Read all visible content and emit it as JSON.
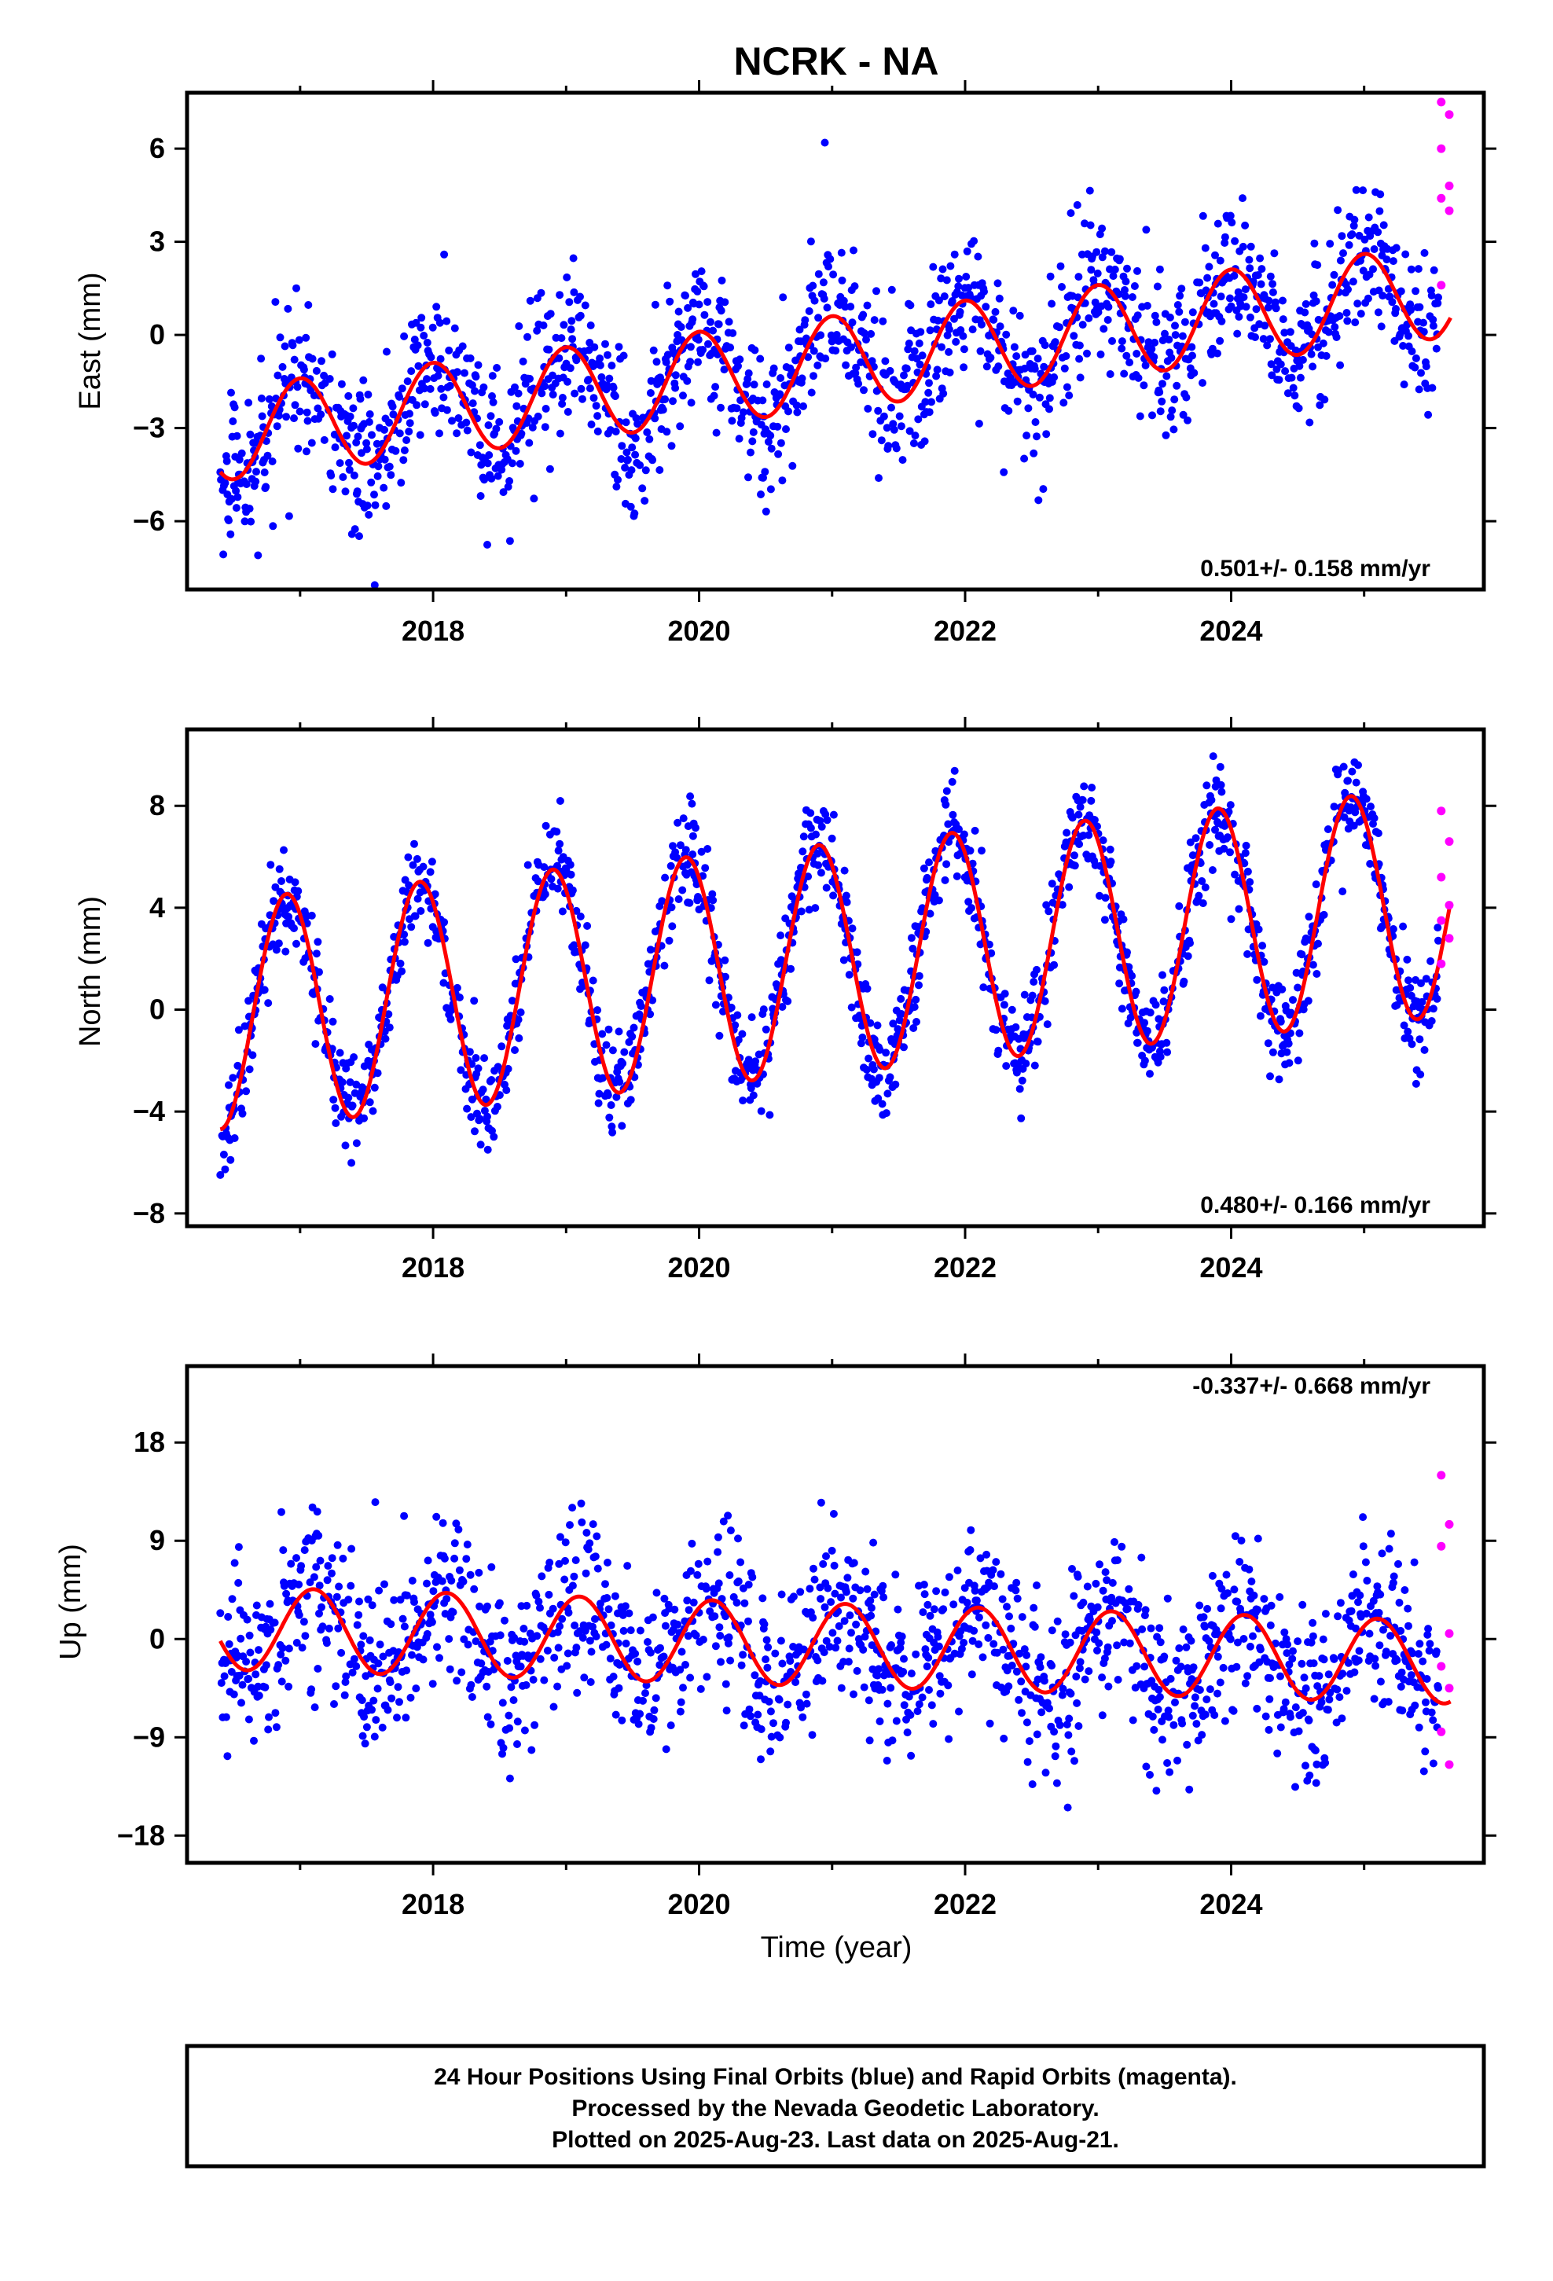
{
  "title": "NCRK - NA",
  "colors": {
    "final": "#0000ff",
    "rapid": "#ff00ff",
    "model": "#ff0000",
    "frame": "#000000"
  },
  "chart_data": [
    {
      "type": "scatter",
      "ylabel": "East (mm)",
      "xlabel": "",
      "rate_label": "0.501+/- 0.158 mm/yr",
      "xlim": [
        2016.15,
        2025.9
      ],
      "ylim": [
        -8.2,
        7.8
      ],
      "xticks": [
        2018,
        2020,
        2022,
        2024
      ],
      "yticks": [
        -6,
        -3,
        0,
        3,
        6
      ],
      "legend": "none",
      "series": [
        {
          "kind": "trend",
          "start": [
            2016.4,
            -3.2
          ],
          "rate_mm_per_yr": 0.501,
          "seasonal_amplitude_mm": 1.5,
          "peak_phase_yr": 0.6,
          "final_scatter_mm": 1.2
        },
        {
          "kind": "rapid",
          "x_range": [
            2025.58,
            2025.64
          ],
          "y": [
            7.5,
            7.1,
            6.0,
            4.8,
            4.4,
            4.0,
            1.6
          ]
        }
      ]
    },
    {
      "type": "scatter",
      "ylabel": "North (mm)",
      "xlabel": "",
      "rate_label": "0.480+/- 0.166 mm/yr",
      "xlim": [
        2016.15,
        2025.9
      ],
      "ylim": [
        -8.5,
        11.0
      ],
      "xticks": [
        2018,
        2020,
        2022,
        2024
      ],
      "yticks": [
        -8,
        -4,
        0,
        4,
        8
      ],
      "legend": "none",
      "series": [
        {
          "kind": "trend",
          "start": [
            2016.4,
            -0.2
          ],
          "rate_mm_per_yr": 0.48,
          "seasonal_amplitude_mm": 4.5,
          "peak_phase_yr": 0.5,
          "final_scatter_mm": 1.0
        },
        {
          "kind": "rapid",
          "x_range": [
            2025.58,
            2025.64
          ],
          "y": [
            7.8,
            6.6,
            5.2,
            4.1,
            3.5,
            2.8,
            1.8
          ]
        }
      ]
    },
    {
      "type": "scatter",
      "ylabel": "Up (mm)",
      "xlabel": "Time (year)",
      "rate_label": "-0.337+/- 0.668 mm/yr",
      "xlim": [
        2016.15,
        2025.9
      ],
      "ylim": [
        -20.5,
        25.0
      ],
      "xticks": [
        2018,
        2020,
        2022,
        2024
      ],
      "yticks": [
        -18,
        -9,
        0,
        9,
        18
      ],
      "legend": "none",
      "series": [
        {
          "kind": "trend",
          "start": [
            2016.4,
            1.0
          ],
          "rate_mm_per_yr": -0.337,
          "seasonal_amplitude_mm": 3.8,
          "peak_phase_yr": 0.7,
          "final_scatter_mm": 4.0
        },
        {
          "kind": "rapid",
          "x_range": [
            2025.58,
            2025.64
          ],
          "y": [
            15.0,
            10.5,
            8.5,
            0.5,
            -2.5,
            -4.5,
            -8.5,
            -11.5
          ]
        }
      ]
    }
  ],
  "footer": {
    "line1": "24 Hour Positions Using Final Orbits (blue) and Rapid Orbits (magenta).",
    "line2": "Processed by the Nevada Geodetic Laboratory.",
    "line3": "Plotted on 2025-Aug-23. Last data on 2025-Aug-21."
  }
}
